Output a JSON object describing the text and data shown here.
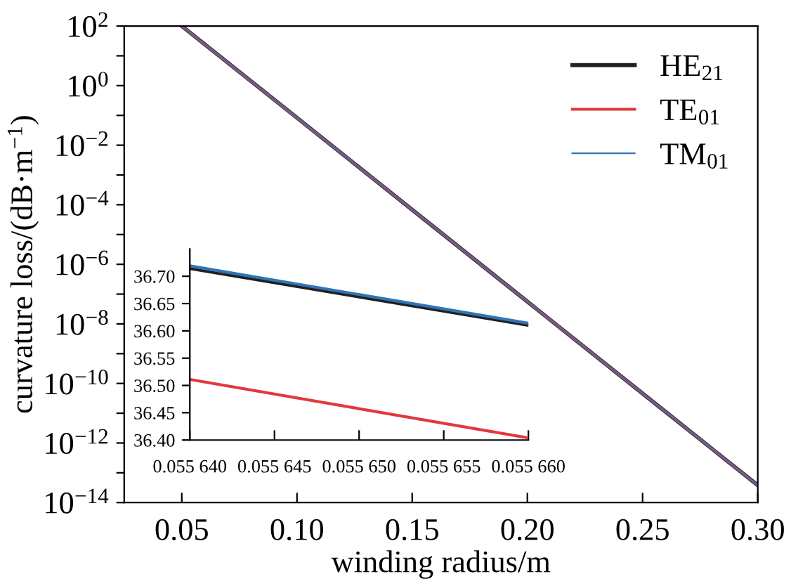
{
  "chart_data": [
    {
      "type": "line",
      "xlabel": "winding radius/m",
      "ylabel": "curvature loss/(dB·m$^{−1}$)",
      "log": "y",
      "legend": "top right",
      "x": [
        0.05,
        0.1,
        0.15,
        0.2,
        0.25,
        0.3
      ],
      "series": [
        {
          "name": "HE$_{21}$",
          "color": "#231f20",
          "values": [
            100,
            0.083,
            6.8e-05,
            5.6e-08,
            4.6e-11,
            3.8e-14
          ]
        },
        {
          "name": "TE$_{01}$",
          "color": "#e0393e",
          "values": [
            100,
            0.083,
            6.8e-05,
            5.6e-08,
            4.6e-11,
            3.8e-14
          ]
        },
        {
          "name": "TM$_{01}$",
          "color": "#2e75b6",
          "values": [
            100,
            0.083,
            6.8e-05,
            5.6e-08,
            4.6e-11,
            3.8e-14
          ]
        }
      ],
      "xlim": [
        0.025,
        0.3
      ],
      "xticks": [
        {
          "value": 0.05,
          "label": "0.05"
        },
        {
          "value": 0.1,
          "label": "0.10"
        },
        {
          "value": 0.15,
          "label": "0.15"
        },
        {
          "value": 0.2,
          "label": "0.20"
        },
        {
          "value": 0.25,
          "label": "0.25"
        },
        {
          "value": 0.3,
          "label": "0.30"
        }
      ],
      "ylim": [
        1e-14,
        100
      ],
      "yticks": [
        {
          "value": 1e-14,
          "label": "10$^{−14}$"
        },
        {
          "value": 1e-13,
          "label": null
        },
        {
          "value": 1e-12,
          "label": "10$^{−12}$"
        },
        {
          "value": 1e-11,
          "label": null
        },
        {
          "value": 1e-10,
          "label": "10$^{−10}$"
        },
        {
          "value": 1e-09,
          "label": null
        },
        {
          "value": 1e-08,
          "label": "10$^{−8}$"
        },
        {
          "value": 1e-07,
          "label": null
        },
        {
          "value": 1e-06,
          "label": "10$^{−6}$"
        },
        {
          "value": 1e-05,
          "label": null
        },
        {
          "value": 0.0001,
          "label": "10$^{−4}$"
        },
        {
          "value": 0.001,
          "label": null
        },
        {
          "value": 0.01,
          "label": "10$^{−2}$"
        },
        {
          "value": 0.1,
          "label": null
        },
        {
          "value": 1,
          "label": "10$^{0}$"
        },
        {
          "value": 10,
          "label": null
        },
        {
          "value": 100,
          "label": "10$^{2}$"
        }
      ]
    },
    {
      "type": "line",
      "x": [
        0.05564,
        0.05566
      ],
      "series": [
        {
          "color": "#231f20",
          "values": [
            36.714,
            36.61
          ]
        },
        {
          "color": "#e0393e",
          "values": [
            36.511,
            36.404
          ]
        },
        {
          "color": "#2e75b6",
          "values": [
            36.719,
            36.614
          ]
        }
      ],
      "xlim": [
        0.05564,
        0.05566
      ],
      "xticks": [
        {
          "value": 0.05564,
          "label": "0.055 640"
        },
        {
          "value": 0.055645,
          "label": "0.055 645"
        },
        {
          "value": 0.05565,
          "label": "0.055 650"
        },
        {
          "value": 0.055655,
          "label": "0.055 655"
        },
        {
          "value": 0.05566,
          "label": "0.055 660"
        }
      ],
      "ylim": [
        36.4,
        36.75
      ],
      "yticks": [
        {
          "value": 36.4,
          "label": "36.40"
        },
        {
          "value": 36.45,
          "label": "36.45"
        },
        {
          "value": 36.5,
          "label": "36.50"
        },
        {
          "value": 36.55,
          "label": "36.55"
        },
        {
          "value": 36.6,
          "label": "36.60"
        },
        {
          "value": 36.65,
          "label": "36.65"
        },
        {
          "value": 36.7,
          "label": "36.70"
        }
      ]
    }
  ]
}
